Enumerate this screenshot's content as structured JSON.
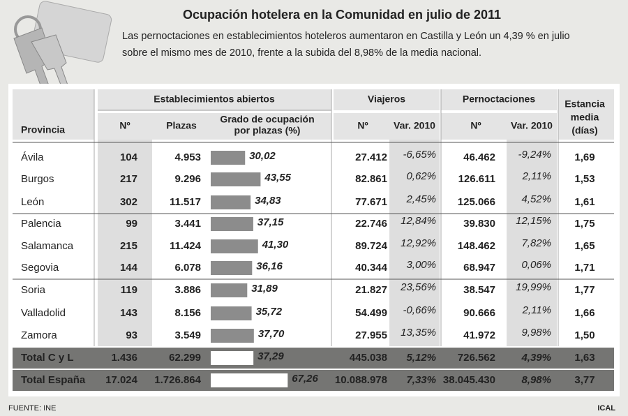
{
  "header": {
    "title": "Ocupación hotelera en la Comunidad en julio de 2011",
    "subtitle": [
      "Las pernoctaciones en establecimientos hoteleros aumentaron en Castilla y León un 4,39 % en julio",
      "sobre el mismo mes de 2010, frente a la subida del 8,98% de la media nacional."
    ]
  },
  "table": {
    "groups": [
      "Establecimientos abiertos",
      "Viajeros",
      "Pernoctaciones"
    ],
    "columns": [
      "Provincia",
      "Nº",
      "Plazas",
      [
        "Grado de ocupación",
        "por plazas (%)"
      ],
      "Nº",
      "Var. 2010",
      "Nº",
      "Var. 2010",
      [
        "Estancia",
        "media",
        "(días)"
      ]
    ],
    "rows": [
      [
        "Ávila",
        "104",
        "4.953",
        {
          "value": 30.02,
          "label": "30,02"
        },
        "27.412",
        "-6,65%",
        "46.462",
        "-9,24%",
        "1,69"
      ],
      [
        "Burgos",
        "217",
        "9.296",
        {
          "value": 43.55,
          "label": "43,55"
        },
        "82.861",
        "0,62%",
        "126.611",
        "2,11%",
        "1,53"
      ],
      [
        "León",
        "302",
        "11.517",
        {
          "value": 34.83,
          "label": "34,83"
        },
        "77.671",
        "2,45%",
        "125.066",
        "4,52%",
        "1,61"
      ],
      [
        "Palencia",
        "99",
        "3.441",
        {
          "value": 37.15,
          "label": "37,15"
        },
        "22.746",
        "12,84%",
        "39.830",
        "12,15%",
        "1,75"
      ],
      [
        "Salamanca",
        "215",
        "11.424",
        {
          "value": 41.3,
          "label": "41,30"
        },
        "89.724",
        "12,92%",
        "148.462",
        "7,82%",
        "1,65"
      ],
      [
        "Segovia",
        "144",
        "6.078",
        {
          "value": 36.16,
          "label": "36,16"
        },
        "40.344",
        "3,00%",
        "68.947",
        "0,06%",
        "1,71"
      ],
      [
        "Soria",
        "119",
        "3.886",
        {
          "value": 31.89,
          "label": "31,89"
        },
        "21.827",
        "23,56%",
        "38.547",
        "19,99%",
        "1,77"
      ],
      [
        "Valladolid",
        "143",
        "8.156",
        {
          "value": 35.72,
          "label": "35,72"
        },
        "54.499",
        "-0,66%",
        "90.666",
        "2,11%",
        "1,66"
      ],
      [
        "Zamora",
        "93",
        "3.549",
        {
          "value": 37.7,
          "label": "37,70"
        },
        "27.955",
        "13,35%",
        "41.972",
        "9,98%",
        "1,50"
      ]
    ],
    "totals": [
      [
        "Total C y L",
        "1.436",
        "62.299",
        {
          "value": 37.29,
          "label": "37,29"
        },
        "445.038",
        "5,12%",
        "726.562",
        "4,39%",
        "1,63"
      ],
      [
        "Total España",
        "17.024",
        "1.726.864",
        {
          "value": 67.26,
          "label": "67,26"
        },
        "10.088.978",
        "7,33%",
        "38.045.430",
        "8,98%",
        "3,77"
      ]
    ]
  },
  "footer": {
    "source": "FUENTE: INE",
    "credit": "ICAL"
  }
}
